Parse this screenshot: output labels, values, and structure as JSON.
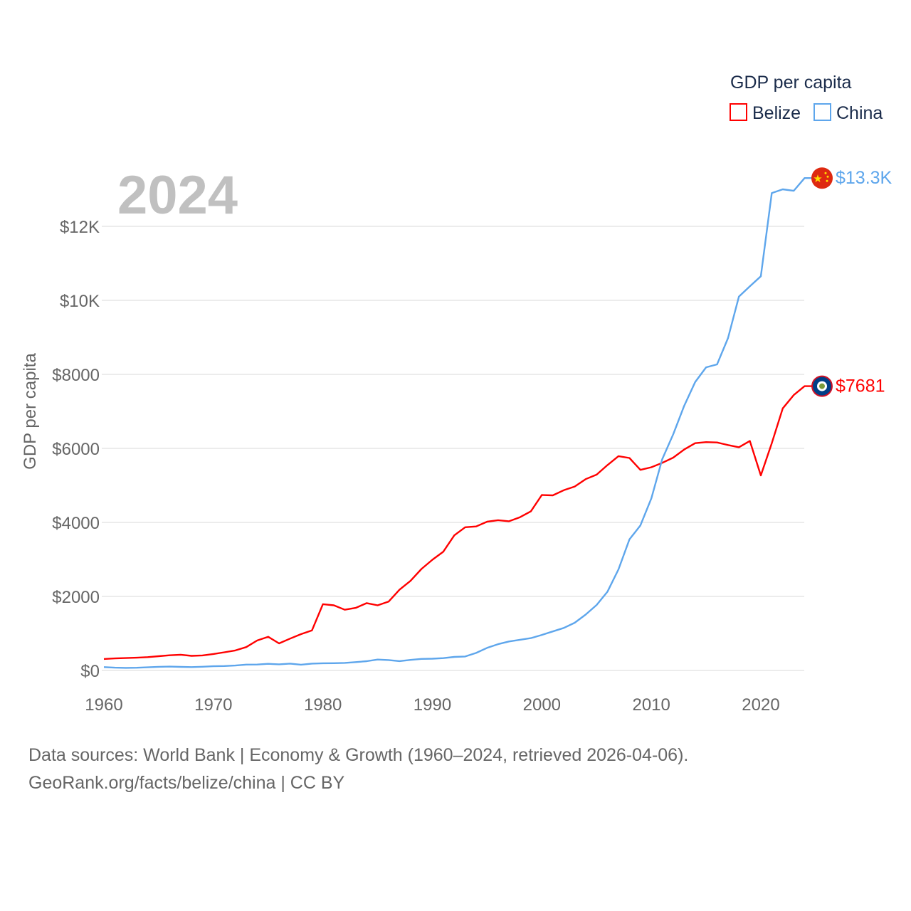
{
  "chart_data": {
    "type": "line",
    "year_label": "2024",
    "legend_title": "GDP per capita",
    "legend_position": "top-right",
    "ylabel": "GDP per capita",
    "xlabel": "",
    "xlim": [
      1960,
      2024
    ],
    "ylim": [
      0,
      13300
    ],
    "grid": true,
    "y_ticks": [
      0,
      2000,
      4000,
      6000,
      8000,
      10000,
      12000
    ],
    "y_tick_labels": [
      "$0",
      "$2000",
      "$4000",
      "$6000",
      "$8000",
      "$10K",
      "$12K"
    ],
    "x_ticks": [
      1960,
      1970,
      1980,
      1990,
      2000,
      2010,
      2020
    ],
    "x_tick_labels": [
      "1960",
      "1970",
      "1980",
      "1990",
      "2000",
      "2010",
      "2020"
    ],
    "x": [
      1960,
      1961,
      1962,
      1963,
      1964,
      1965,
      1966,
      1967,
      1968,
      1969,
      1970,
      1971,
      1972,
      1973,
      1974,
      1975,
      1976,
      1977,
      1978,
      1979,
      1980,
      1981,
      1982,
      1983,
      1984,
      1985,
      1986,
      1987,
      1988,
      1989,
      1990,
      1991,
      1992,
      1993,
      1994,
      1995,
      1996,
      1997,
      1998,
      1999,
      2000,
      2001,
      2002,
      2003,
      2004,
      2005,
      2006,
      2007,
      2008,
      2009,
      2010,
      2011,
      2012,
      2013,
      2014,
      2015,
      2016,
      2017,
      2018,
      2019,
      2020,
      2021,
      2022,
      2023,
      2024
    ],
    "series": [
      {
        "name": "Belize",
        "color": "#ff0000",
        "end_label": "$7681",
        "flag": "belize-flag",
        "values": [
          310,
          325,
          335,
          345,
          360,
          385,
          410,
          425,
          395,
          405,
          445,
          490,
          540,
          630,
          810,
          910,
          730,
          860,
          980,
          1080,
          1790,
          1760,
          1640,
          1690,
          1820,
          1760,
          1860,
          2180,
          2420,
          2740,
          2990,
          3210,
          3650,
          3870,
          3890,
          4020,
          4060,
          4030,
          4140,
          4300,
          4740,
          4730,
          4870,
          4970,
          5170,
          5290,
          5550,
          5790,
          5740,
          5420,
          5490,
          5610,
          5750,
          5970,
          6140,
          6170,
          6160,
          6090,
          6030,
          6200,
          5270,
          6140,
          7080,
          7440,
          7681
        ]
      },
      {
        "name": "China",
        "color": "#5ea6ec",
        "end_label": "$13.3K",
        "flag": "china-flag",
        "values": [
          90,
          75,
          70,
          74,
          85,
          98,
          104,
          97,
          91,
          100,
          113,
          119,
          132,
          157,
          160,
          178,
          165,
          185,
          156,
          184,
          195,
          197,
          203,
          225,
          250,
          294,
          281,
          252,
          284,
          311,
          318,
          333,
          366,
          377,
          473,
          610,
          709,
          782,
          829,
          873,
          959,
          1053,
          1149,
          1289,
          1509,
          1770,
          2130,
          2730,
          3540,
          3920,
          4650,
          5710,
          6380,
          7150,
          7790,
          8190,
          8270,
          8980,
          10100,
          10380,
          10650,
          12900,
          13000,
          12960,
          13303
        ]
      }
    ]
  },
  "footer": {
    "line1": "Data sources: World Bank | Economy & Growth (1960–2024, retrieved 2026-04-06).",
    "line2": "GeoRank.org/facts/belize/china | CC BY"
  }
}
